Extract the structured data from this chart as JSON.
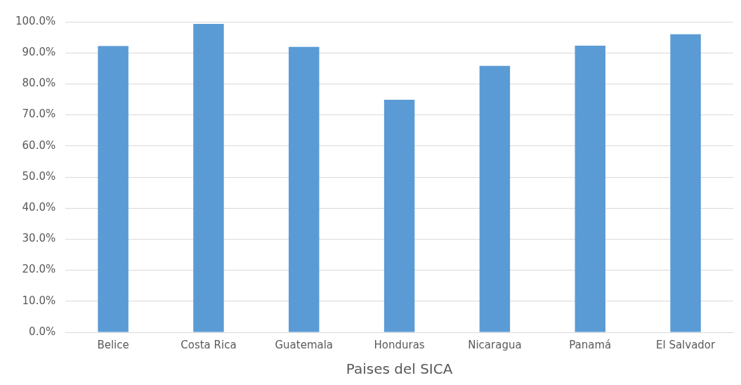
{
  "chart_data": {
    "type": "bar",
    "xlabel": "Paises del SICA",
    "categories": [
      "Belice",
      "Costa Rica",
      "Guatemala",
      "Honduras",
      "Nicaragua",
      "Panamá",
      "El Salvador"
    ],
    "values": [
      92.2,
      99.3,
      91.9,
      74.9,
      85.8,
      92.3,
      96.0
    ],
    "color": "#5b9bd5",
    "ylim": [
      0,
      100
    ],
    "yticks": [
      {
        "value": 0,
        "label": "0.0%"
      },
      {
        "value": 10,
        "label": "10.0%"
      },
      {
        "value": 20,
        "label": "20.0%"
      },
      {
        "value": 30,
        "label": "30.0%"
      },
      {
        "value": 40,
        "label": "40.0%"
      },
      {
        "value": 50,
        "label": "50.0%"
      },
      {
        "value": 60,
        "label": "60.0%"
      },
      {
        "value": 70,
        "label": "70.0%"
      },
      {
        "value": 80,
        "label": "80.0%"
      },
      {
        "value": 90,
        "label": "90.0%"
      },
      {
        "value": 100,
        "label": "100.0%"
      }
    ],
    "grid": "y",
    "legend": false
  }
}
